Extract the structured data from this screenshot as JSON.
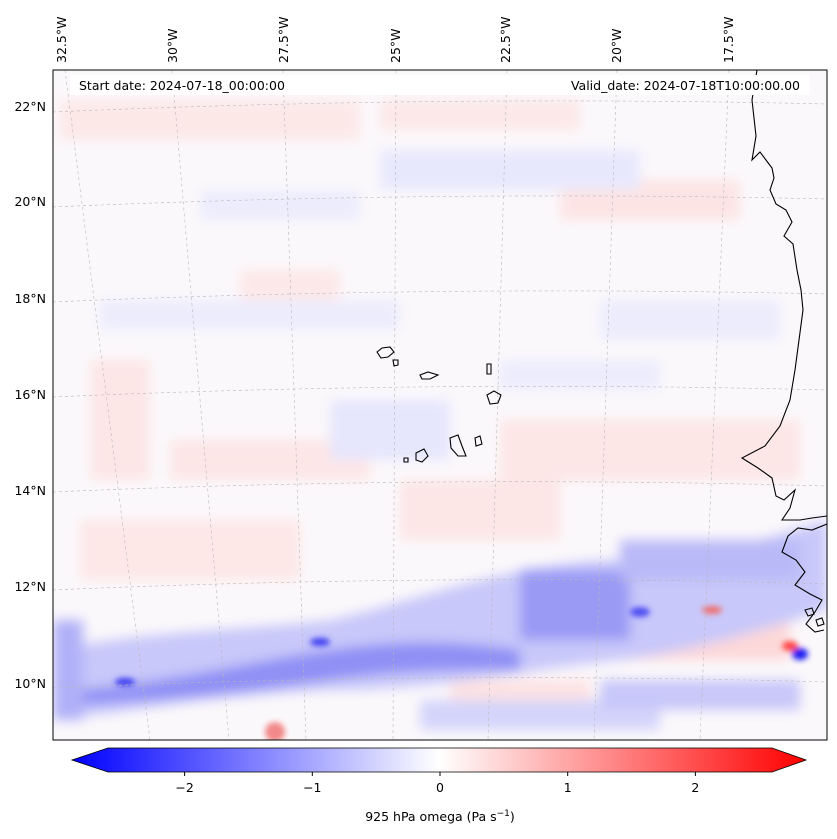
{
  "map": {
    "start_date_label": "Start date: 2024-07-18_00:00:00",
    "valid_date_label": "Valid_date: 2024-07-18T10:00:00.00",
    "lon_labels": [
      "32.5°W",
      "30°W",
      "27.5°W",
      "25°W",
      "22.5°W",
      "20°W",
      "17.5°W"
    ],
    "lat_labels": [
      "22°N",
      "20°N",
      "18°N",
      "16°N",
      "14°N",
      "12°N",
      "10°N"
    ],
    "grid": true,
    "projection": "conic",
    "variable": "925 hPa omega",
    "colormap": "bwr"
  },
  "colorbar": {
    "label": "925 hPa omega (Pa s",
    "label_superscript": "−1",
    "label_close": ")",
    "ticks": [
      "−2",
      "−1",
      "0",
      "1",
      "2"
    ],
    "tick_values": [
      -2,
      -1,
      0,
      1,
      2
    ],
    "range": [
      -2.6,
      2.6
    ],
    "extend": "both",
    "colors": {
      "min": "#0000ff",
      "mid": "#ffffff",
      "max": "#ff0000"
    }
  }
}
